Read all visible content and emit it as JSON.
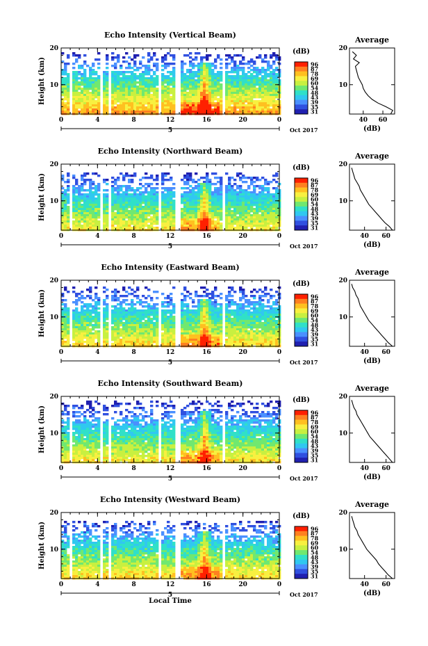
{
  "figure": {
    "xlabel": "Local Time",
    "date_label": "Oct 2017",
    "day_marker": "5",
    "colorbar_unit": "(dB)",
    "colorbar_ticks": [
      "96",
      "87",
      "78",
      "69",
      "60",
      "54",
      "48",
      "43",
      "39",
      "35",
      "31"
    ],
    "avg_title": "Average",
    "avg_xlabel": "(dB)",
    "colors": [
      "#2020b0",
      "#3050e0",
      "#4a90ff",
      "#30c8f0",
      "#30e0c8",
      "#70e870",
      "#c8f040",
      "#f8f040",
      "#ffc020",
      "#ff8020",
      "#ff2000"
    ]
  },
  "chart_data": [
    {
      "type": "heatmap",
      "title": "Echo Intensity (Vertical Beam)",
      "ylabel": "Height (km)",
      "x_ticks": [
        "0",
        "4",
        "8",
        "12",
        "16",
        "20",
        "0"
      ],
      "y_ticks": [
        "20",
        "10"
      ],
      "xlim": [
        0,
        24
      ],
      "ylim": [
        2,
        20
      ],
      "base_level": 0.62,
      "top_height": 19,
      "gaps": [
        [
          0.8,
          1.2
        ],
        [
          4.2,
          4.6
        ],
        [
          5.2,
          5.6
        ],
        [
          10.7,
          11.0
        ],
        [
          12.6,
          13.0
        ],
        [
          17.8,
          18.1
        ]
      ],
      "cloud": {
        "x": 15.8,
        "width": 0.8,
        "height": 16
      },
      "average": {
        "x_ticks": [
          "40",
          "60"
        ],
        "y_ticks": [
          "20",
          "10"
        ],
        "xlim": [
          26,
          72
        ],
        "heights": [
          2,
          3,
          4,
          5,
          6,
          7,
          8,
          9,
          10,
          11,
          12,
          13,
          14,
          15,
          16,
          17,
          18,
          19
        ],
        "values": [
          68,
          70,
          63,
          55,
          49,
          45,
          42,
          40,
          39,
          37,
          35,
          34,
          33,
          32,
          36,
          30,
          33,
          29
        ]
      }
    },
    {
      "type": "heatmap",
      "title": "Echo Intensity (Northward Beam)",
      "ylabel": "Height (km)",
      "x_ticks": [
        "0",
        "4",
        "8",
        "12",
        "16",
        "20",
        "0"
      ],
      "y_ticks": [
        "20",
        "10"
      ],
      "xlim": [
        0,
        24
      ],
      "ylim": [
        2,
        20
      ],
      "base_level": 0.52,
      "top_height": 18,
      "gaps": [
        [
          0.8,
          1.2
        ],
        [
          4.2,
          4.6
        ],
        [
          5.2,
          5.6
        ],
        [
          10.7,
          11.0
        ],
        [
          12.6,
          13.0
        ],
        [
          17.8,
          18.1
        ]
      ],
      "cloud": {
        "x": 15.8,
        "width": 0.8,
        "height": 15
      },
      "average": {
        "x_ticks": [
          "40",
          "60"
        ],
        "y_ticks": [
          "20",
          "10"
        ],
        "xlim": [
          26,
          68
        ],
        "heights": [
          2,
          3,
          4,
          5,
          6,
          7,
          8,
          9,
          10,
          11,
          12,
          13,
          14,
          15,
          16,
          17,
          18,
          19
        ],
        "values": [
          66,
          63,
          59,
          56,
          53,
          50,
          47,
          44,
          42,
          40,
          38,
          36,
          35,
          33,
          31,
          30,
          29,
          28
        ]
      }
    },
    {
      "type": "heatmap",
      "title": "Echo Intensity (Eastward Beam)",
      "ylabel": "Height (km)",
      "x_ticks": [
        "0",
        "4",
        "8",
        "12",
        "16",
        "20",
        "0"
      ],
      "y_ticks": [
        "20",
        "10"
      ],
      "xlim": [
        0,
        24
      ],
      "ylim": [
        2,
        20
      ],
      "base_level": 0.55,
      "top_height": 18.5,
      "gaps": [
        [
          0.8,
          1.2
        ],
        [
          4.2,
          4.6
        ],
        [
          5.2,
          5.6
        ],
        [
          10.7,
          11.0
        ],
        [
          12.6,
          13.0
        ],
        [
          17.8,
          18.1
        ]
      ],
      "cloud": {
        "x": 15.8,
        "width": 0.8,
        "height": 15
      },
      "average": {
        "x_ticks": [
          "40",
          "60"
        ],
        "y_ticks": [
          "20",
          "10"
        ],
        "xlim": [
          26,
          68
        ],
        "heights": [
          2,
          3,
          4,
          5,
          6,
          7,
          8,
          9,
          10,
          11,
          12,
          13,
          14,
          15,
          16,
          17,
          18,
          19
        ],
        "values": [
          66,
          62,
          59,
          56,
          53,
          50,
          47,
          44,
          42,
          40,
          38,
          36,
          35,
          34,
          32,
          31,
          29,
          28
        ]
      }
    },
    {
      "type": "heatmap",
      "title": "Echo Intensity (Southward Beam)",
      "ylabel": "Height (km)",
      "x_ticks": [
        "0",
        "4",
        "8",
        "12",
        "16",
        "20",
        "0"
      ],
      "y_ticks": [
        "20",
        "10"
      ],
      "xlim": [
        0,
        24
      ],
      "ylim": [
        2,
        20
      ],
      "base_level": 0.53,
      "top_height": 19,
      "gaps": [
        [
          0.8,
          1.2
        ],
        [
          4.2,
          4.6
        ],
        [
          5.2,
          5.6
        ],
        [
          10.7,
          11.0
        ],
        [
          12.6,
          13.0
        ],
        [
          17.8,
          18.1
        ]
      ],
      "cloud": {
        "x": 15.8,
        "width": 0.8,
        "height": 16
      },
      "average": {
        "x_ticks": [
          "40",
          "60"
        ],
        "y_ticks": [
          "20",
          "10"
        ],
        "xlim": [
          26,
          68
        ],
        "heights": [
          2,
          3,
          4,
          5,
          6,
          7,
          8,
          9,
          10,
          11,
          12,
          13,
          14,
          15,
          16,
          17,
          18,
          19
        ],
        "values": [
          66,
          63,
          60,
          57,
          54,
          51,
          48,
          45,
          43,
          41,
          39,
          37,
          35,
          33,
          32,
          30,
          29,
          28
        ]
      }
    },
    {
      "type": "heatmap",
      "title": "Echo Intensity (Westward Beam)",
      "ylabel": "Height (km)",
      "x_ticks": [
        "0",
        "4",
        "8",
        "12",
        "16",
        "20",
        "0"
      ],
      "y_ticks": [
        "20",
        "10"
      ],
      "xlim": [
        0,
        24
      ],
      "ylim": [
        2,
        20
      ],
      "base_level": 0.55,
      "top_height": 18,
      "gaps": [
        [
          0.8,
          1.2
        ],
        [
          4.2,
          4.6
        ],
        [
          5.2,
          5.6
        ],
        [
          10.7,
          11.0
        ],
        [
          12.6,
          13.0
        ],
        [
          17.8,
          18.1
        ]
      ],
      "cloud": {
        "x": 15.8,
        "width": 0.8,
        "height": 15
      },
      "average": {
        "x_ticks": [
          "40",
          "60"
        ],
        "y_ticks": [
          "20",
          "10"
        ],
        "xlim": [
          26,
          68
        ],
        "heights": [
          2,
          3,
          4,
          5,
          6,
          7,
          8,
          9,
          10,
          11,
          12,
          13,
          14,
          15,
          16,
          17,
          18,
          19
        ],
        "values": [
          66,
          62,
          59,
          56,
          53,
          51,
          48,
          45,
          42,
          40,
          38,
          36,
          34,
          33,
          31,
          30,
          29,
          28
        ]
      }
    }
  ]
}
